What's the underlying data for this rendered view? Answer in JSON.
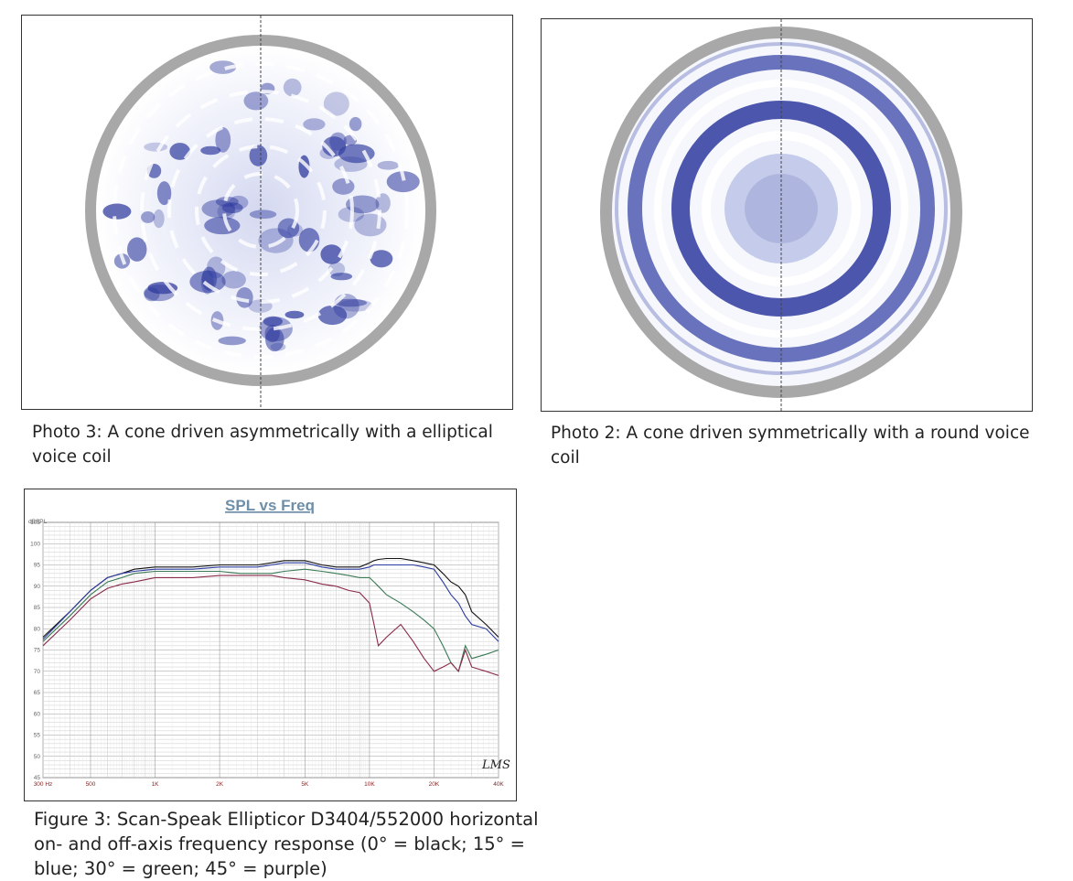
{
  "photo3": {
    "caption": "Photo 3: A cone driven asymmetrically with a elliptical voice coil"
  },
  "photo2": {
    "caption": "Photo 2: A cone driven symmetrically with a round voice coil"
  },
  "figure3": {
    "caption": "Figure 3: Scan-Speak Ellipticor D3404/552000 horizontal on- and off-axis frequency response (0° = black; 15° = blue; 30° = green; 45° = purple)"
  },
  "colors": {
    "ring": "#a8a8a8",
    "mode": "#2e3a9e",
    "black": "#111111",
    "blue": "#2a3aa0",
    "green": "#3a7a55",
    "purple": "#8a2a4a",
    "grid": "#bdbdbd",
    "title": "#6f8fa8"
  },
  "chart_data": {
    "type": "line",
    "title": "SPL vs Freq",
    "ylabel": "dBSPL",
    "logo": "LMS",
    "xscale": "log",
    "xlim": [
      300,
      40000
    ],
    "ylim": [
      45,
      105
    ],
    "yticks": [
      45,
      50,
      55,
      60,
      65,
      70,
      75,
      80,
      85,
      90,
      95,
      100,
      105
    ],
    "xticks": [
      {
        "v": 300,
        "label": "300 Hz"
      },
      {
        "v": 500,
        "label": "500"
      },
      {
        "v": 1000,
        "label": "1K"
      },
      {
        "v": 2000,
        "label": "2K"
      },
      {
        "v": 5000,
        "label": "5K"
      },
      {
        "v": 10000,
        "label": "10K"
      },
      {
        "v": 20000,
        "label": "20K"
      },
      {
        "v": 40000,
        "label": "40K"
      }
    ],
    "x": [
      300,
      400,
      500,
      600,
      700,
      800,
      1000,
      1200,
      1500,
      2000,
      2500,
      3000,
      3500,
      4000,
      5000,
      6000,
      7000,
      8000,
      9000,
      10000,
      10500,
      11000,
      12000,
      14000,
      16000,
      18000,
      20000,
      22000,
      24000,
      26000,
      28000,
      30000,
      35000,
      40000
    ],
    "series": [
      {
        "color": "black",
        "values": [
          78,
          84,
          89,
          92,
          93,
          94,
          94.5,
          94.5,
          94.5,
          95,
          95,
          95,
          95.5,
          96,
          96,
          95,
          94.5,
          94.5,
          94.5,
          95.5,
          96,
          96.3,
          96.5,
          96.5,
          96,
          95.5,
          95,
          93,
          91,
          90,
          88,
          84,
          81,
          78
        ]
      },
      {
        "color": "blue",
        "values": [
          77.5,
          84,
          89,
          92,
          93,
          93.5,
          94,
          94,
          94,
          94.5,
          94.5,
          94.5,
          95,
          95.5,
          95.5,
          94.5,
          94,
          94,
          94,
          94.5,
          95,
          95,
          95,
          95,
          95,
          94.5,
          94,
          91,
          88,
          86,
          83,
          81,
          80,
          77
        ]
      },
      {
        "color": "green",
        "values": [
          77,
          83,
          88,
          91,
          92,
          93,
          93.5,
          93.5,
          93.5,
          93.5,
          93,
          93,
          93,
          93.5,
          94,
          93.5,
          93,
          92.5,
          92,
          92,
          91,
          90,
          88,
          86,
          84,
          82,
          80,
          76,
          72,
          70,
          76,
          73,
          74,
          75
        ]
      },
      {
        "color": "purple",
        "values": [
          76,
          82,
          87,
          89.5,
          90.5,
          91,
          92,
          92,
          92,
          92.5,
          92.5,
          92.5,
          92.5,
          92,
          91.5,
          90.5,
          90,
          89,
          88.5,
          86,
          81,
          76,
          78,
          81,
          77,
          73,
          70,
          71,
          72,
          70,
          75,
          71,
          70,
          69
        ]
      }
    ]
  }
}
